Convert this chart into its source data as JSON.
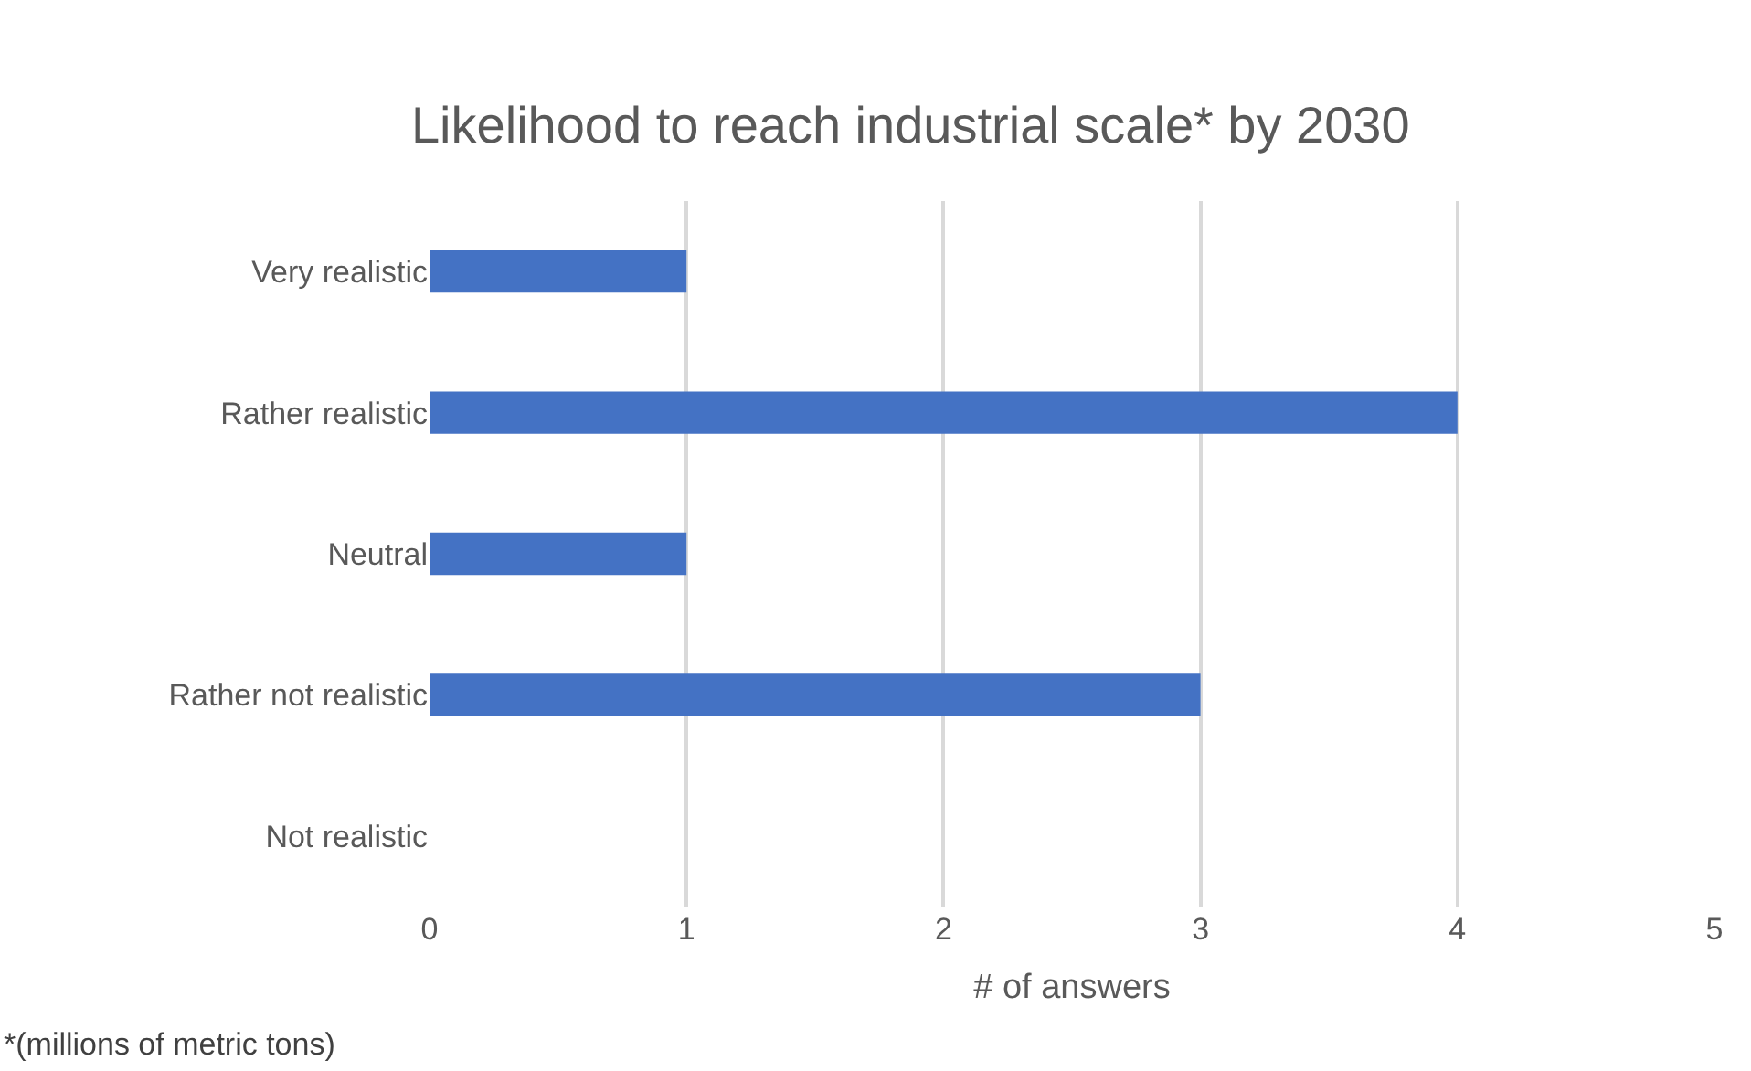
{
  "chart_data": {
    "type": "bar",
    "orientation": "horizontal",
    "title": "Likelihood to reach industrial scale* by 2030",
    "categories": [
      "Very realistic",
      "Rather realistic",
      "Neutral",
      "Rather not realistic",
      "Not realistic"
    ],
    "values": [
      1,
      4,
      1,
      3,
      0
    ],
    "color": "#4472c4",
    "xlabel": "# of answers",
    "xlim": [
      0,
      5
    ],
    "xticks": [
      0,
      1,
      2,
      3,
      4,
      5
    ],
    "grid": "x",
    "annotations": [
      "*(millions of metric tons)"
    ]
  }
}
